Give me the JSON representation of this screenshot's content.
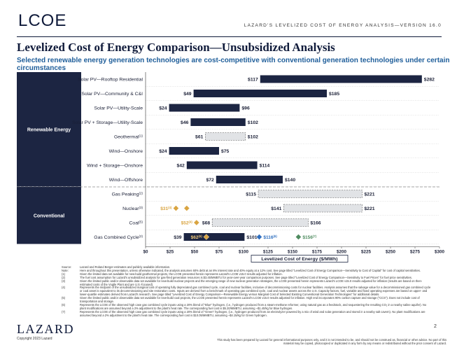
{
  "header": {
    "logo_text": "LCOE",
    "tag": "LAZARD'S LEVELIZED COST OF ENERGY ANALYSIS—VERSION 16.0"
  },
  "title": "Levelized Cost of Energy Comparison—Unsubsidized Analysis",
  "subtitle": "Selected renewable energy generation technologies are cost-competitive with conventional generation technologies under certain circumstances",
  "chart_data": {
    "type": "bar",
    "orientation": "horizontal-range",
    "xlabel": "Levelized Cost of Energy ($/MWh)",
    "xlim": [
      0,
      300
    ],
    "x_ticks": [
      "$0",
      "$25",
      "$50",
      "$75",
      "$100",
      "$125",
      "$150",
      "$175",
      "$200",
      "$225",
      "$250",
      "$275",
      "$300"
    ],
    "sections": [
      {
        "name": "Renewable Energy",
        "rows": [
          0,
          1,
          2,
          3,
          4,
          5,
          6,
          7
        ]
      },
      {
        "name": "Conventional",
        "rows": [
          8,
          9,
          10,
          11
        ]
      }
    ],
    "series": [
      {
        "name": "Solar PV—Rooftop Residential",
        "note": "",
        "low": 117,
        "high": 282,
        "low_label": "$117",
        "high_label": "$282",
        "style": "solid"
      },
      {
        "name": "Solar PV—Community & C&I",
        "note": "",
        "low": 49,
        "high": 185,
        "low_label": "$49",
        "high_label": "$185",
        "style": "solid"
      },
      {
        "name": "Solar PV—Utility-Scale",
        "note": "",
        "low": 24,
        "high": 96,
        "low_label": "$24",
        "high_label": "$96",
        "style": "solid"
      },
      {
        "name": "Solar PV + Storage—Utility-Scale",
        "note": "",
        "low": 46,
        "high": 102,
        "low_label": "$46",
        "high_label": "$102",
        "style": "solid"
      },
      {
        "name": "Geothermal",
        "note": "(1)",
        "low": 61,
        "high": 102,
        "low_label": "$61",
        "high_label": "$102",
        "style": "dashed"
      },
      {
        "name": "Wind—Onshore",
        "note": "",
        "low": 24,
        "high": 75,
        "low_label": "$24",
        "high_label": "$75",
        "style": "solid"
      },
      {
        "name": "Wind + Storage—Onshore",
        "note": "",
        "low": 42,
        "high": 114,
        "low_label": "$42",
        "high_label": "$114",
        "style": "solid"
      },
      {
        "name": "Wind—Offshore",
        "note": "",
        "low": 72,
        "high": 140,
        "low_label": "$72",
        "high_label": "$140",
        "style": "solid"
      },
      {
        "name": "Gas Peaking",
        "note": "(2)",
        "low": 115,
        "high": 221,
        "low_label": "$115",
        "high_label": "$221",
        "style": "dashed"
      },
      {
        "name": "Nuclear",
        "note": "(3)",
        "low": 141,
        "high": 221,
        "low_label": "$141",
        "high_label": "$221",
        "style": "dashed"
      },
      {
        "name": "Coal",
        "note": "(5)",
        "low": 68,
        "high": 166,
        "low_label": "$68",
        "high_label": "$166",
        "style": "dashed"
      },
      {
        "name": "Gas Combined Cycle",
        "note": "(2)",
        "low": 39,
        "high": 101,
        "low_label": "$39",
        "high_label": "$101",
        "style": "solid"
      }
    ],
    "markers": [
      {
        "row": 9,
        "value": 31,
        "label": "$31",
        "note": "(4)",
        "color": "#d9a441",
        "label_side": "left"
      },
      {
        "row": 9,
        "value": 42,
        "label": "",
        "note": "",
        "color": "#d9a441",
        "label_side": "none"
      },
      {
        "row": 10,
        "value": 52,
        "label": "$52",
        "note": "(4)",
        "color": "#d9a441",
        "label_side": "left"
      },
      {
        "row": 11,
        "value": 62,
        "label": "$62",
        "note": "(6)",
        "color": "#d9a441",
        "label_side": "inside"
      },
      {
        "row": 11,
        "value": 116,
        "label": "$116",
        "note": "(6)",
        "color": "#2f6fbf",
        "label_side": "right"
      },
      {
        "row": 11,
        "value": 156,
        "label": "$156",
        "note": "(7)",
        "color": "#4e8b5f",
        "label_side": "right"
      }
    ]
  },
  "notes": [
    {
      "key": "Source:",
      "text": "Lazard and Roland Berger estimates and publicly available information."
    },
    {
      "key": "Note:",
      "text": "Here and throughout this presentation, unless otherwise indicated, the analysis assumes 60% debt at an 8% interest rate and 40% equity at a 12% cost. See page titled \"Levelized Cost of Energy Comparison—Sensitivity to Cost of Capital\" for cost of capital sensitivities."
    },
    {
      "key": "(1)",
      "text": "Given the limited data set available for new-build geothermal projects, the LCOE presented herein represents Lazard's LCOE v15.0 results adjusted for inflation."
    },
    {
      "key": "(2)",
      "text": "The fuel cost assumption for Lazard's unsubsidized analysis for gas-fired generation resources is $3.45/MMBTU for year-over-year comparison purposes. See page titled \"Levelized Cost of Energy Comparison—Sensitivity to Fuel Prices\" for fuel price sensitivities."
    },
    {
      "key": "(3)",
      "text": "Given the limited public and/or observable data set available for new-build nuclear projects and the emerging range of new nuclear generation strategies, the LCOE presented herein represents Lazard's LCOE v15.0 results adjusted for inflation (results are based on then-estimated costs of the Vogtle Plant and are U.S.-focused)."
    },
    {
      "key": "(4)",
      "text": "Represents the midpoint of the unsubsidized marginal cost of operating fully depreciated gas combined cycle, coal and nuclear facilities, inclusive of decommissioning costs for nuclear facilities. Analysis assumes that the salvage value for a decommissioned gas combined cycle or coal asset is equivalent to its decommissioning and site restoration costs. Inputs are derived from a benchmark of operating gas combined cycle, coal and nuclear assets across the U.S. Capacity factors, fuel, variable and fixed operating expenses are based on upper- and lower-quartile estimates derived from Lazard's research. See page titled \"Levelized Cost of Energy Comparison—Renewable Energy versus Marginal Cost of Selected Existing Conventional Generation Technologies\" for additional details."
    },
    {
      "key": "(5)",
      "text": "Given the limited public and/or observable data set available for new-build coal projects, the LCOE presented herein represents Lazard's LCOE v15.0 results adjusted for inflation. High end incorporates 90% carbon capture and storage (\"CCS\"). Does not include cost of transportation and storage."
    },
    {
      "key": "(6)",
      "text": "Represents the LCOE of the observed high case gas combined cycle inputs using a 20% blend of \"Blue\" hydrogen, (i.e., hydrogen produced from a steam-methane reformer, using natural gas as a feedstock, and sequestering the resulting CO₂ in a nearby saline aquifer). No plant modifications are assumed beyond a 2% adjustment to the plant's heat rate. The corresponding fuel cost is $5.20/MMBTU, assuming ~$1.40/kg for Blue hydrogen."
    },
    {
      "key": "(7)",
      "text": "Represents the LCOE of the observed high case gas combined cycle inputs using a 20% blend of \"Green\" hydrogen, (i.e., hydrogen produced from an electrolyzer powered by a mix of wind and solar generation and stored in a nearby salt cavern). No plant modifications are assumed beyond a 2% adjustment to the plant's heat rate. The corresponding fuel cost is $10.05/MMBTU, assuming ~$4.15/kg for Green hydrogen."
    }
  ],
  "footer": {
    "logo": "LAZARD",
    "copyright": "Copyright 2023 Lazard",
    "page": "2",
    "disclaimer": "This study has been prepared by Lazard for general informational purposes only, and it is not intended to be, and should not be construed as, financial or other advice. No part of this material may be copied, photocopied or duplicated in any form by any means or redistributed without the prior consent of Lazard."
  }
}
